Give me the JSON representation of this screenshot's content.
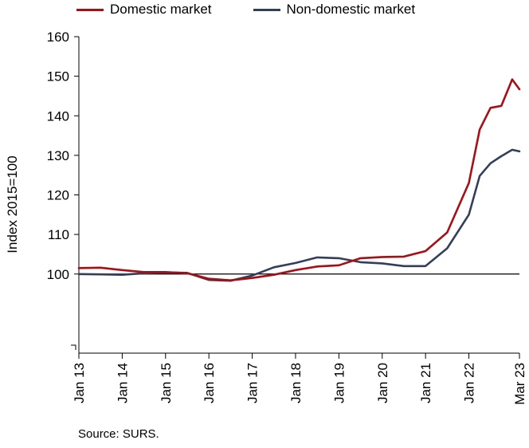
{
  "legend": {
    "domestic_label": "Domestic market",
    "nondomestic_label": "Non-domestic market"
  },
  "source_note": "Source: SURS.",
  "colors": {
    "domestic": "#a50f15",
    "nondomestic": "#333f5a",
    "axis": "#000000"
  },
  "chart_data": {
    "type": "line",
    "ylabel": "Index 2015=100",
    "ylim": [
      80,
      160
    ],
    "y_ticks": [
      100,
      110,
      120,
      130,
      140,
      150,
      160
    ],
    "x_tick_labels": [
      "Jan 13",
      "Jan 14",
      "Jan 15",
      "Jan 16",
      "Jan 17",
      "Jan 18",
      "Jan 19",
      "Jan 20",
      "Jan 21",
      "Jan 22",
      "Mar 23"
    ],
    "x_range": [
      "Jan 13",
      "Mar 23"
    ],
    "reference_line": 100,
    "series": [
      {
        "name": "Domestic market",
        "points": [
          [
            "Jan 13",
            101.5
          ],
          [
            "Jul 13",
            101.6
          ],
          [
            "Jan 14",
            101.0
          ],
          [
            "Jul 14",
            100.5
          ],
          [
            "Jan 15",
            100.5
          ],
          [
            "Jul 15",
            100.2
          ],
          [
            "Jan 16",
            98.8
          ],
          [
            "Jul 16",
            98.4
          ],
          [
            "Jan 17",
            99.0
          ],
          [
            "Jul 17",
            99.8
          ],
          [
            "Jan 18",
            101.0
          ],
          [
            "Jul 18",
            101.9
          ],
          [
            "Jan 19",
            102.2
          ],
          [
            "Jul 19",
            104.0
          ],
          [
            "Jan 20",
            104.3
          ],
          [
            "Jul 20",
            104.4
          ],
          [
            "Jan 21",
            105.8
          ],
          [
            "Jul 21",
            110.5
          ],
          [
            "Jan 22",
            123.0
          ],
          [
            "Apr 22",
            136.5
          ],
          [
            "Jul 22",
            142.0
          ],
          [
            "Oct 22",
            142.5
          ],
          [
            "Jan 23",
            149.2
          ],
          [
            "Mar 23",
            146.7
          ]
        ]
      },
      {
        "name": "Non-domestic market",
        "points": [
          [
            "Jan 13",
            100.0
          ],
          [
            "Jul 13",
            99.9
          ],
          [
            "Jan 14",
            99.8
          ],
          [
            "Jul 14",
            100.2
          ],
          [
            "Jan 15",
            100.4
          ],
          [
            "Jul 15",
            100.3
          ],
          [
            "Jan 16",
            98.5
          ],
          [
            "Jul 16",
            98.3
          ],
          [
            "Jan 17",
            99.6
          ],
          [
            "Jul 17",
            101.7
          ],
          [
            "Jan 18",
            102.8
          ],
          [
            "Jul 18",
            104.2
          ],
          [
            "Jan 19",
            104.0
          ],
          [
            "Jul 19",
            103.0
          ],
          [
            "Jan 20",
            102.7
          ],
          [
            "Jul 20",
            102.0
          ],
          [
            "Jan 21",
            102.0
          ],
          [
            "Jul 21",
            106.5
          ],
          [
            "Jan 22",
            115.0
          ],
          [
            "Apr 22",
            124.8
          ],
          [
            "Jul 22",
            128.0
          ],
          [
            "Oct 22",
            129.8
          ],
          [
            "Jan 23",
            131.4
          ],
          [
            "Mar 23",
            131.0
          ]
        ]
      }
    ]
  }
}
